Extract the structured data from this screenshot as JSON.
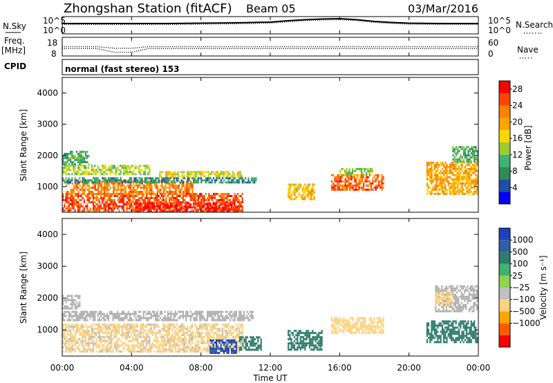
{
  "header": {
    "title": "Zhongshan Station (fitACF)",
    "beam": "Beam 05",
    "date": "03/Mar/2016"
  },
  "summary_panels": {
    "nsky_label": "N.Sky",
    "nsearch_label": "N.Search",
    "noise_ticks": [
      "10^5",
      "10^0"
    ],
    "freq_label_line1": "Freq.",
    "freq_label_line2": "[MHz]",
    "freq_ticks": [
      "18",
      "8"
    ],
    "nave_label": "Nave",
    "nave_ticks": [
      "60",
      "0"
    ],
    "cpid_label": "CPID",
    "cpid_text": "normal (fast stereo) 153"
  },
  "colors": {
    "power_scale": [
      "#0000ff",
      "#1f4fa6",
      "#2e8b57",
      "#3cb371",
      "#9acd32",
      "#ffd700",
      "#ffa500",
      "#ff7f00",
      "#ff4500",
      "#ff0000"
    ],
    "velocity_scale": [
      "#ff0000",
      "#ff5a00",
      "#ffa500",
      "#ffd27f",
      "#c0c0c0",
      "#8fd44f",
      "#3cb371",
      "#2e7d6b",
      "#2f5fa6",
      "#1e3fbf"
    ],
    "ground_scatter": "#b0b0b0"
  },
  "icons": {
    "nsearch_marker": "dotted-line",
    "nave_marker": "dotted-line"
  },
  "chart_data": [
    {
      "type": "line",
      "title": "N.Sky / N.Search",
      "x": [
        "00:00",
        "02:00",
        "04:00",
        "06:00",
        "08:00",
        "10:00",
        "12:00",
        "13:00",
        "14:00",
        "15:00",
        "16:00",
        "17:00",
        "18:00",
        "19:00",
        "20:00",
        "22:00",
        "24:00"
      ],
      "series": [
        {
          "name": "N.Sky",
          "values": [
            3.0,
            3.0,
            3.0,
            3.0,
            3.1,
            3.2,
            3.4,
            3.8,
            4.1,
            4.3,
            4.4,
            4.1,
            3.6,
            3.3,
            3.1,
            3.0,
            3.0
          ]
        },
        {
          "name": "N.Search",
          "values": [
            2.7,
            2.7,
            2.7,
            2.7,
            2.8,
            2.9,
            3.1,
            3.5,
            3.8,
            4.0,
            4.1,
            3.8,
            3.3,
            3.0,
            2.8,
            2.7,
            2.7
          ]
        }
      ],
      "ylim": [
        0,
        5
      ],
      "yscale": "log10"
    },
    {
      "type": "line",
      "title": "Freq. [MHz] / Nave",
      "x": [
        "00:00",
        "02:00",
        "03:00",
        "04:00",
        "05:00",
        "08:00",
        "12:00",
        "16:00",
        "20:00",
        "24:00"
      ],
      "series": [
        {
          "name": "Freq.",
          "values": [
            12,
            12,
            10,
            10,
            12,
            12,
            12,
            12,
            12,
            12
          ]
        },
        {
          "name": "Nave",
          "values": [
            30,
            30,
            25,
            25,
            30,
            30,
            30,
            30,
            30,
            30
          ]
        }
      ],
      "ylim": [
        8,
        18
      ]
    },
    {
      "type": "heatmap",
      "title": "Power [dB]",
      "xlabel": "",
      "ylabel": "Slant Range [km]",
      "xlim": [
        0,
        24
      ],
      "ylim": [
        180,
        4500
      ],
      "x_ticks": [
        "00:00",
        "04:00",
        "08:00",
        "12:00",
        "16:00",
        "20:00",
        "00:00"
      ],
      "y_ticks": [
        "1000",
        "2000",
        "3000",
        "4000"
      ],
      "colorbar": {
        "label": "Power [dB]",
        "ticks": [
          "4",
          "8",
          "12",
          "16",
          "20",
          "24",
          "28"
        ],
        "range": [
          0,
          30
        ]
      },
      "regions": [
        {
          "t": [
            0.0,
            10.4
          ],
          "r": [
            180,
            800
          ],
          "value": 25
        },
        {
          "t": [
            4.2,
            10.0
          ],
          "r": [
            200,
            500
          ],
          "value": 28
        },
        {
          "t": [
            0.2,
            7.5
          ],
          "r": [
            800,
            1200
          ],
          "value": 22
        },
        {
          "t": [
            0.0,
            11.2
          ],
          "r": [
            1150,
            1300
          ],
          "value": 8
        },
        {
          "t": [
            5.5,
            10.4
          ],
          "r": [
            1350,
            1500
          ],
          "value": 16
        },
        {
          "t": [
            0.0,
            5.0
          ],
          "r": [
            1400,
            1700
          ],
          "value": 14
        },
        {
          "t": [
            0.0,
            1.5
          ],
          "r": [
            1750,
            2150
          ],
          "value": 10
        },
        {
          "t": [
            13.0,
            14.5
          ],
          "r": [
            600,
            1100
          ],
          "value": 18
        },
        {
          "t": [
            15.5,
            18.5
          ],
          "r": [
            900,
            1400
          ],
          "value": 24
        },
        {
          "t": [
            16.0,
            18.0
          ],
          "r": [
            1400,
            1600
          ],
          "value": 14
        },
        {
          "t": [
            21.0,
            24.0
          ],
          "r": [
            800,
            1800
          ],
          "value": 20
        },
        {
          "t": [
            22.5,
            24.0
          ],
          "r": [
            1800,
            2300
          ],
          "value": 10
        }
      ]
    },
    {
      "type": "heatmap",
      "title": "Velocity [m s-1]",
      "xlabel": "Time UT",
      "ylabel": "Slant Range [km]",
      "xlim": [
        0,
        24
      ],
      "ylim": [
        180,
        4500
      ],
      "x_ticks": [
        "00:00",
        "04:00",
        "08:00",
        "12:00",
        "16:00",
        "20:00",
        "00:00"
      ],
      "y_ticks": [
        "1000",
        "2000",
        "3000",
        "4000"
      ],
      "colorbar": {
        "label": "Velocity [m s⁻¹]",
        "ticks": [
          "1000",
          "500",
          "100",
          "25",
          "−25",
          "−100",
          "−500",
          "−1000"
        ],
        "range": [
          -1000,
          1000
        ]
      },
      "regions": [
        {
          "t": [
            0.0,
            1.0
          ],
          "r": [
            1700,
            2100
          ],
          "value": "ground"
        },
        {
          "t": [
            0.0,
            11.0
          ],
          "r": [
            1300,
            1600
          ],
          "value": "ground"
        },
        {
          "t": [
            21.5,
            24.0
          ],
          "r": [
            1600,
            2400
          ],
          "value": "ground"
        },
        {
          "t": [
            0.0,
            10.4
          ],
          "r": [
            300,
            1200
          ],
          "value": -150
        },
        {
          "t": [
            8.5,
            10.0
          ],
          "r": [
            300,
            700
          ],
          "value": 1000
        },
        {
          "t": [
            10.2,
            11.5
          ],
          "r": [
            400,
            800
          ],
          "value": 300
        },
        {
          "t": [
            13.0,
            15.0
          ],
          "r": [
            400,
            1000
          ],
          "value": 400
        },
        {
          "t": [
            15.5,
            18.5
          ],
          "r": [
            900,
            1400
          ],
          "value": -300
        },
        {
          "t": [
            21.0,
            24.0
          ],
          "r": [
            600,
            1300
          ],
          "value": 200
        },
        {
          "t": [
            21.5,
            22.5
          ],
          "r": [
            1800,
            2200
          ],
          "value": -400
        }
      ]
    }
  ]
}
